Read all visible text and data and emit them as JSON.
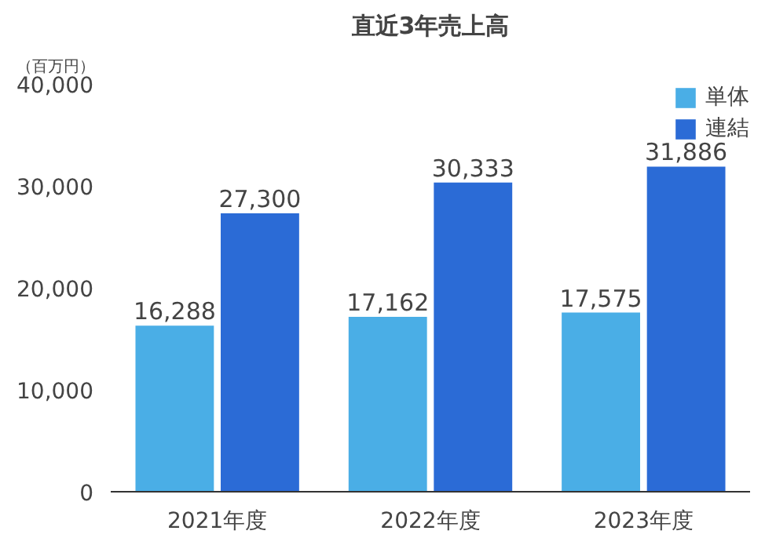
{
  "chart_data": {
    "type": "bar",
    "title": "直近3年売上高",
    "ylabel": "（百万円）",
    "categories": [
      "2021年度",
      "2022年度",
      "2023年度"
    ],
    "series": [
      {
        "name": "単体",
        "color": "#4aaee6",
        "values": [
          16288,
          17162,
          17575
        ],
        "value_labels": [
          "16,288",
          "17,162",
          "17,575"
        ]
      },
      {
        "name": "連結",
        "color": "#2b6bd6",
        "values": [
          27300,
          30333,
          31886
        ],
        "value_labels": [
          "27,300",
          "30,333",
          "31,886"
        ]
      }
    ],
    "ylim": [
      0,
      40000
    ],
    "yticks": [
      {
        "value": 0,
        "label": "0"
      },
      {
        "value": 10000,
        "label": "10,000"
      },
      {
        "value": 20000,
        "label": "20,000"
      },
      {
        "value": 30000,
        "label": "30,000"
      },
      {
        "value": 40000,
        "label": "40,000"
      }
    ],
    "grid": false,
    "legend": "top right"
  }
}
